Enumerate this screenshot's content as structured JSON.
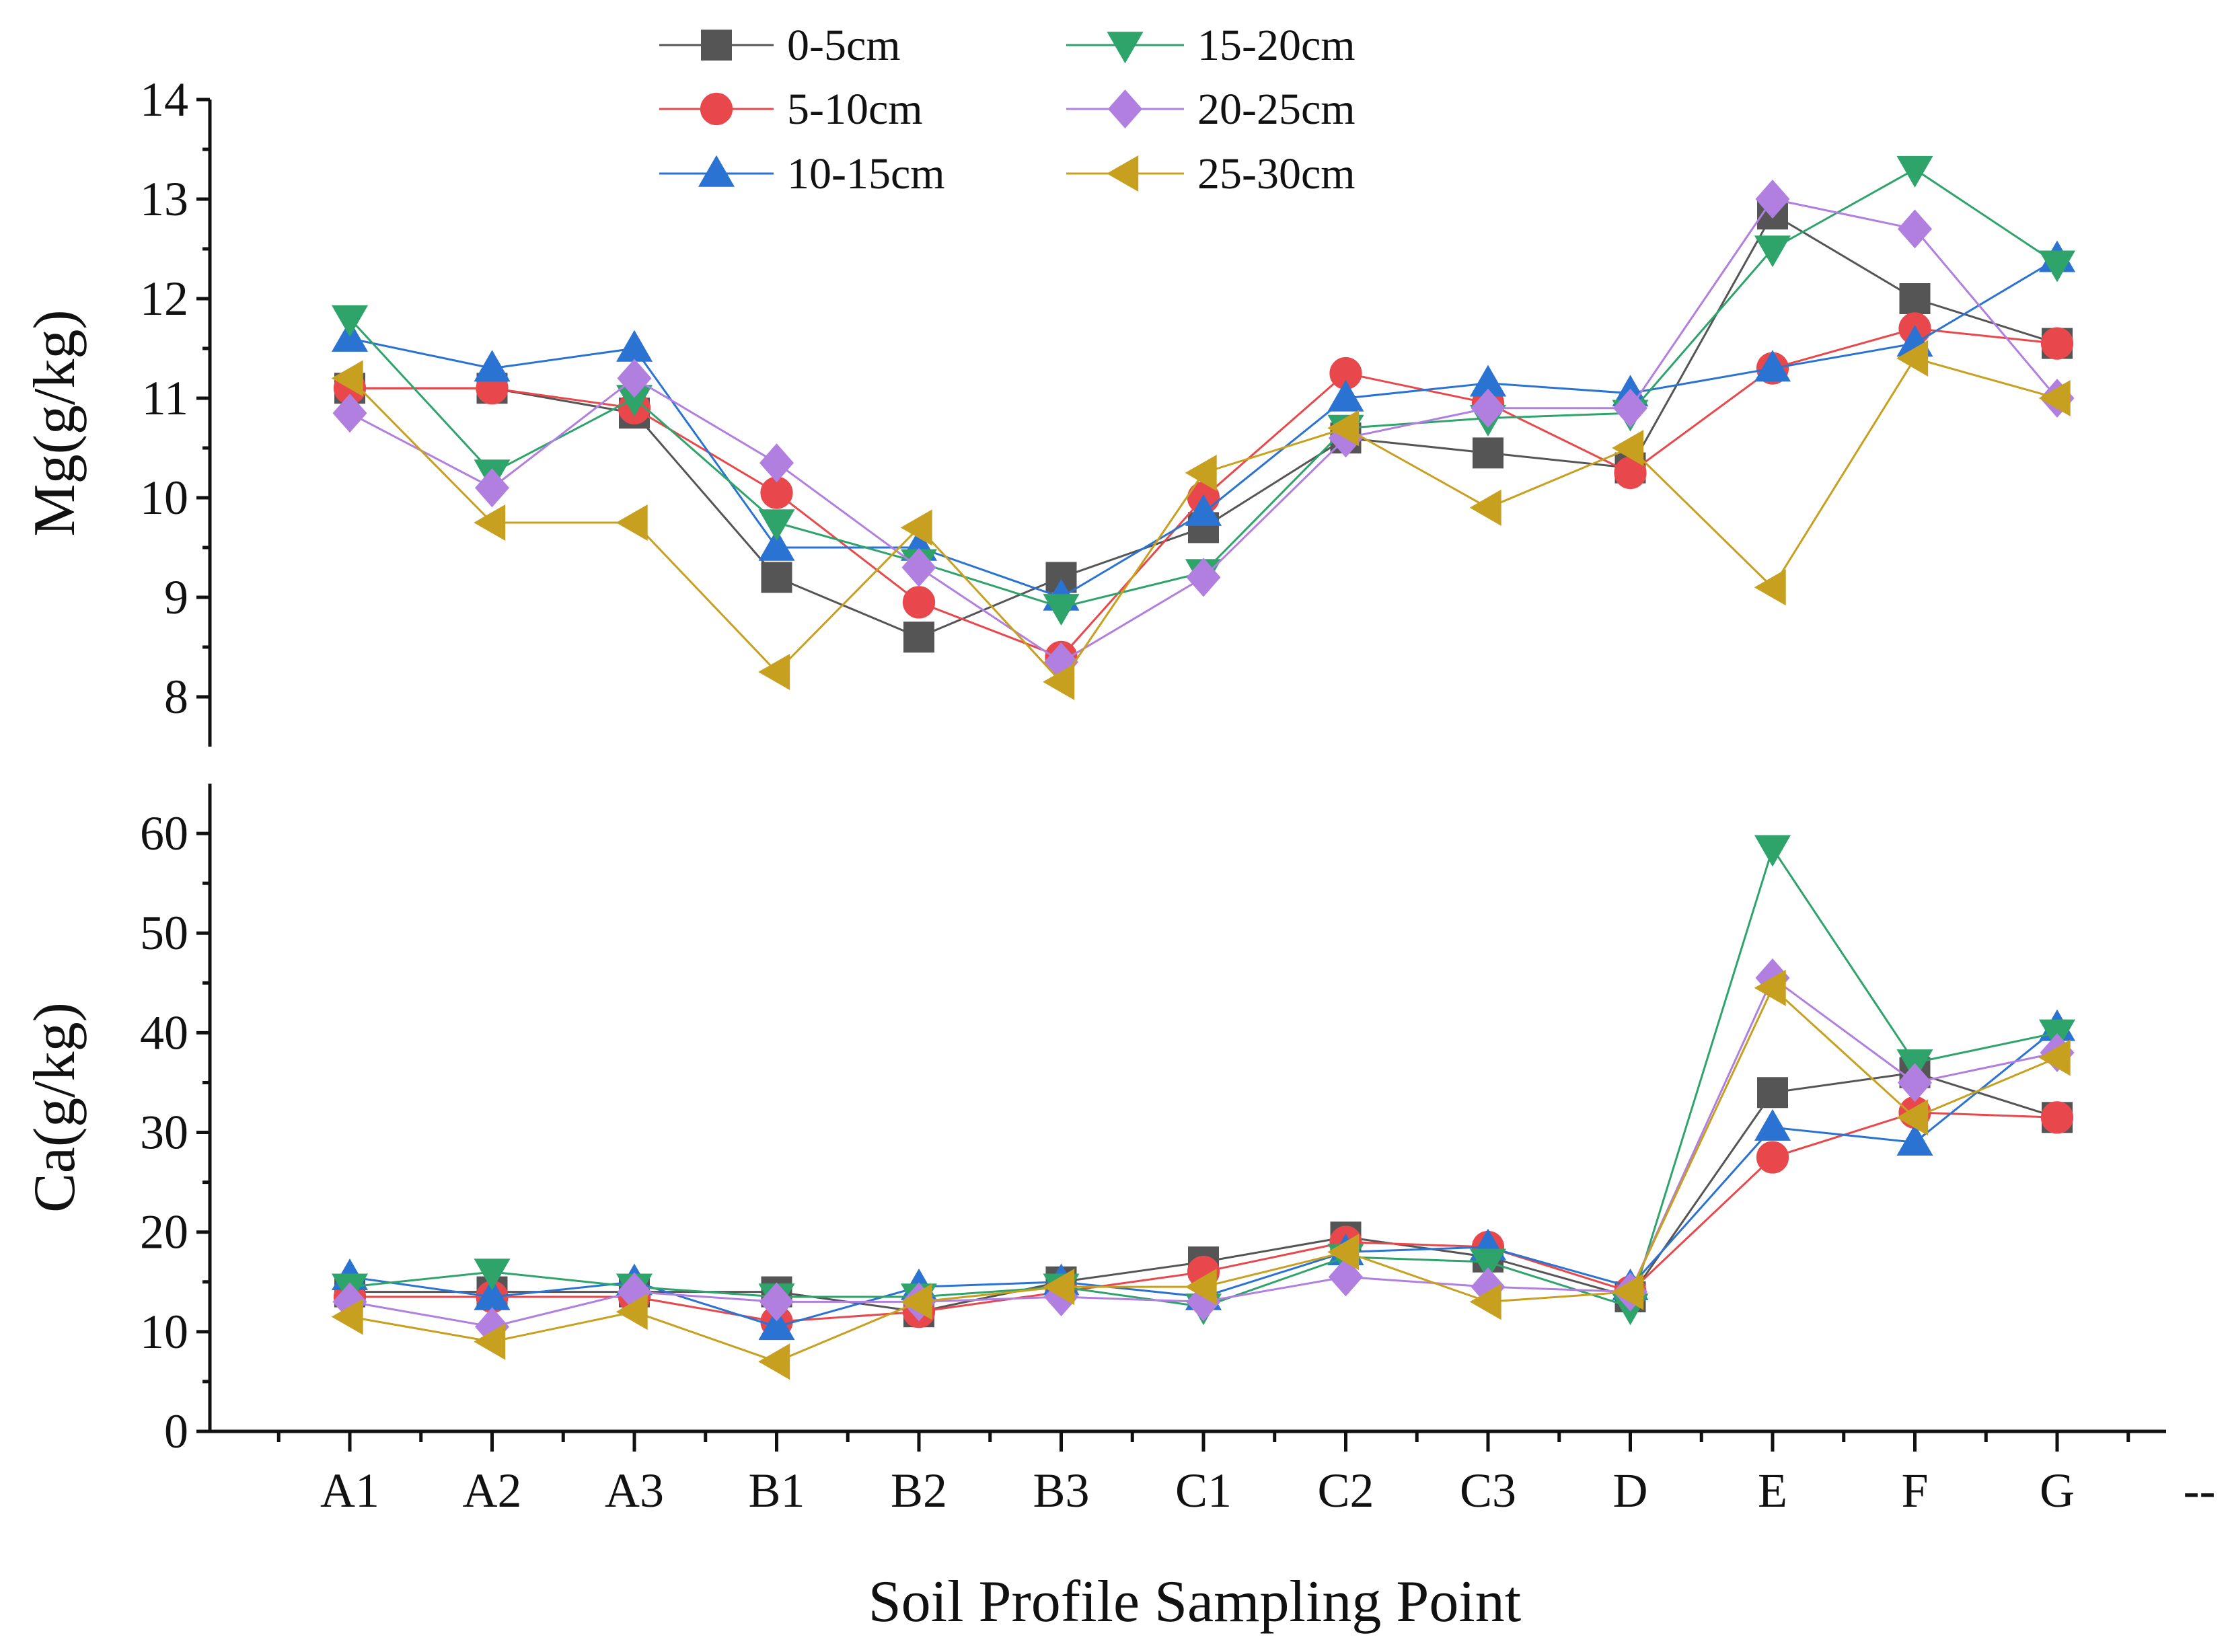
{
  "chart_data": [
    {
      "type": "line",
      "panel": "top",
      "ylabel": "Mg(g/kg)",
      "ylim": [
        7.5,
        14
      ],
      "yticks": [
        8,
        9,
        10,
        11,
        12,
        13,
        14
      ],
      "categories": [
        "A1",
        "A2",
        "A3",
        "B1",
        "B2",
        "B3",
        "C1",
        "C2",
        "C3",
        "D",
        "E",
        "F",
        "G"
      ],
      "series": [
        {
          "name": "0-5cm",
          "color": "#555555",
          "marker": "square",
          "values": [
            11.1,
            11.1,
            10.85,
            9.2,
            8.6,
            9.2,
            9.7,
            10.6,
            10.45,
            10.3,
            12.85,
            12.0,
            11.55
          ]
        },
        {
          "name": "5-10cm",
          "color": "#e8484c",
          "marker": "circle",
          "values": [
            11.1,
            11.1,
            10.9,
            10.05,
            8.95,
            8.4,
            10.0,
            11.25,
            10.95,
            10.25,
            11.3,
            11.7,
            11.55
          ]
        },
        {
          "name": "10-15cm",
          "color": "#2a73d2",
          "marker": "triangle-up",
          "values": [
            11.6,
            11.3,
            11.5,
            9.5,
            9.5,
            9.0,
            9.85,
            11.0,
            11.15,
            11.05,
            11.3,
            11.55,
            12.4
          ]
        },
        {
          "name": "15-20cm",
          "color": "#2ea36a",
          "marker": "triangle-down",
          "values": [
            11.8,
            10.25,
            11.0,
            9.75,
            9.35,
            8.9,
            9.25,
            10.7,
            10.8,
            10.85,
            12.5,
            13.3,
            12.35
          ]
        },
        {
          "name": "20-25cm",
          "color": "#b07fe0",
          "marker": "diamond",
          "values": [
            10.85,
            10.1,
            11.2,
            10.35,
            9.3,
            8.35,
            9.2,
            10.6,
            10.9,
            10.9,
            13.0,
            12.7,
            11.0
          ]
        },
        {
          "name": "25-30cm",
          "color": "#c8a020",
          "marker": "triangle-left",
          "values": [
            11.2,
            9.75,
            9.75,
            8.25,
            9.7,
            8.15,
            10.25,
            10.7,
            9.9,
            10.5,
            9.1,
            11.4,
            11.0
          ]
        }
      ]
    },
    {
      "type": "line",
      "panel": "bottom",
      "ylabel": "Ca(g/kg)",
      "xlabel": "Soil Profile Sampling Point",
      "ylim": [
        0,
        65
      ],
      "yticks": [
        0,
        10,
        20,
        30,
        40,
        50,
        60
      ],
      "categories": [
        "A1",
        "A2",
        "A3",
        "B1",
        "B2",
        "B3",
        "C1",
        "C2",
        "C3",
        "D",
        "E",
        "F",
        "G"
      ],
      "extra_tick_label": "--",
      "series": [
        {
          "name": "0-5cm",
          "color": "#555555",
          "marker": "square",
          "values": [
            14.0,
            14.0,
            14.0,
            14.0,
            12.0,
            15.0,
            17.0,
            19.5,
            17.5,
            13.5,
            34.0,
            36.0,
            31.5
          ]
        },
        {
          "name": "5-10cm",
          "color": "#e8484c",
          "marker": "circle",
          "values": [
            13.5,
            13.5,
            13.5,
            11.0,
            12.0,
            14.0,
            16.0,
            19.0,
            18.5,
            14.0,
            27.5,
            32.0,
            31.5
          ]
        },
        {
          "name": "10-15cm",
          "color": "#2a73d2",
          "marker": "triangle-up",
          "values": [
            15.5,
            13.5,
            15.0,
            10.5,
            14.5,
            15.0,
            13.5,
            18.0,
            18.5,
            14.5,
            30.5,
            29.0,
            40.5
          ]
        },
        {
          "name": "15-20cm",
          "color": "#2ea36a",
          "marker": "triangle-down",
          "values": [
            14.5,
            16.0,
            14.5,
            13.5,
            13.5,
            14.5,
            12.5,
            17.5,
            17.0,
            12.5,
            58.5,
            37.0,
            40.0
          ]
        },
        {
          "name": "20-25cm",
          "color": "#b07fe0",
          "marker": "diamond",
          "values": [
            13.0,
            10.5,
            14.0,
            13.0,
            13.0,
            13.5,
            13.0,
            15.5,
            14.5,
            14.0,
            45.5,
            35.0,
            38.0
          ]
        },
        {
          "name": "25-30cm",
          "color": "#c8a020",
          "marker": "triangle-left",
          "values": [
            11.5,
            9.0,
            12.0,
            7.0,
            13.0,
            14.5,
            14.5,
            18.0,
            13.0,
            14.0,
            44.5,
            31.5,
            37.5
          ]
        }
      ]
    }
  ],
  "legend": [
    {
      "label": "0-5cm",
      "color": "#555555",
      "marker": "square"
    },
    {
      "label": "5-10cm",
      "color": "#e8484c",
      "marker": "circle"
    },
    {
      "label": "10-15cm",
      "color": "#2a73d2",
      "marker": "triangle-up"
    },
    {
      "label": "15-20cm",
      "color": "#2ea36a",
      "marker": "triangle-down"
    },
    {
      "label": "20-25cm",
      "color": "#b07fe0",
      "marker": "diamond"
    },
    {
      "label": "25-30cm",
      "color": "#c8a020",
      "marker": "triangle-left"
    }
  ]
}
